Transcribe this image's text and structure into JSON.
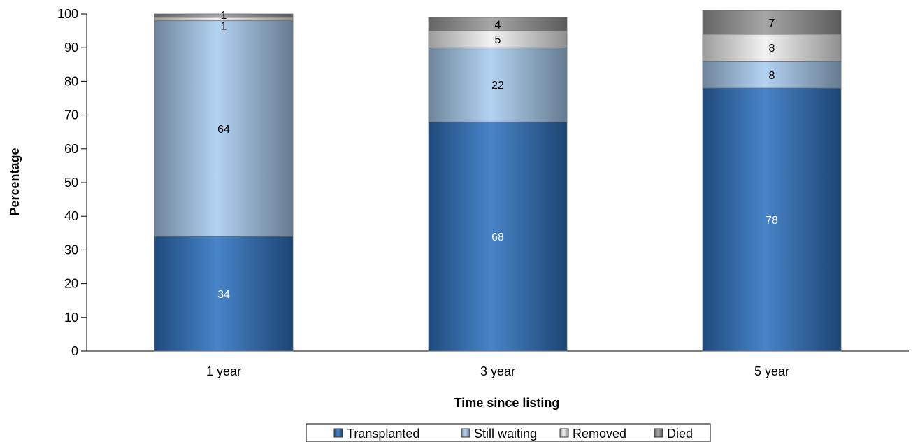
{
  "chart_data": {
    "type": "bar",
    "stacked": true,
    "categories": [
      "1 year",
      "3 year",
      "5 year"
    ],
    "series": [
      {
        "name": "Transplanted",
        "values": [
          34,
          68,
          78
        ],
        "labels": [
          "34",
          "68",
          "78"
        ],
        "color": "#2f73c0"
      },
      {
        "name": "Still waiting",
        "values": [
          64,
          22,
          8
        ],
        "labels": [
          "64",
          "22",
          "8"
        ],
        "color": "#a9cdf0"
      },
      {
        "name": "Removed",
        "values": [
          1,
          5,
          8
        ],
        "labels": [
          "1",
          "5",
          "8"
        ],
        "color": "#f0f0f0"
      },
      {
        "name": "Died",
        "values": [
          1,
          4,
          7
        ],
        "labels": [
          "1",
          "4",
          "7"
        ],
        "color": "#9a9a9a"
      }
    ],
    "xlabel": "Time since listing",
    "ylabel": "Percentage",
    "ylim": [
      0,
      100
    ],
    "yticks": [
      0,
      10,
      20,
      30,
      40,
      50,
      60,
      70,
      80,
      90,
      100
    ],
    "grid": false,
    "legend_position": "bottom"
  }
}
